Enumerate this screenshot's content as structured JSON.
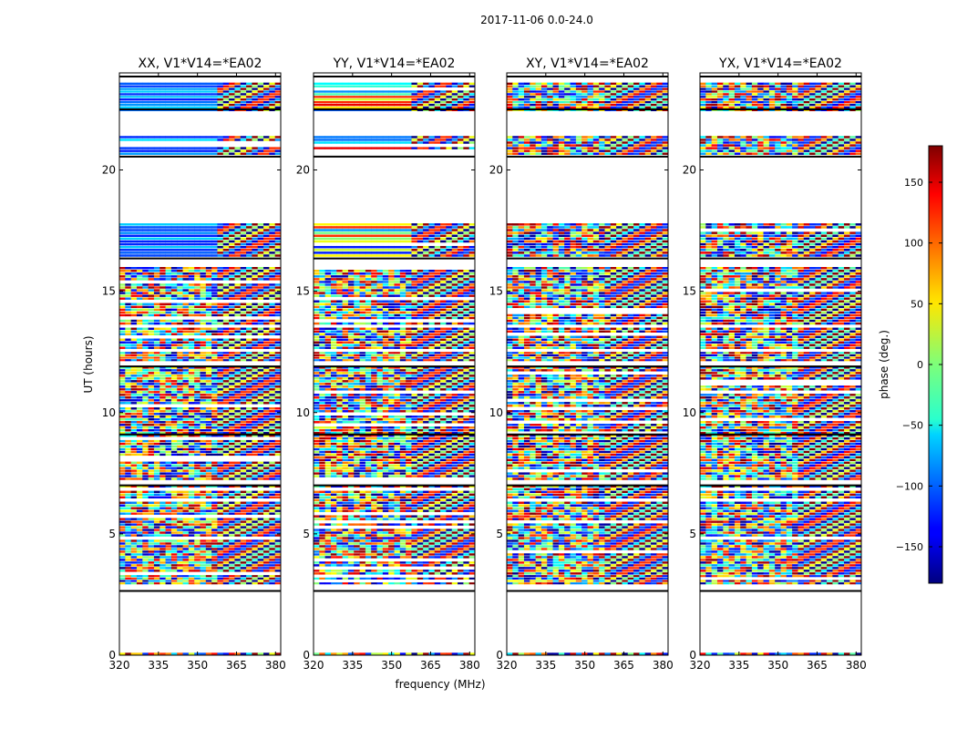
{
  "chart_data": {
    "type": "heatmap",
    "suptitle": "2017-11-06 0.0-24.0",
    "xlabel": "frequency (MHz)",
    "ylabel": "UT (hours)",
    "xlim": [
      320,
      382
    ],
    "ylim": [
      0,
      24
    ],
    "xticks": [
      320,
      335,
      350,
      365,
      380
    ],
    "yticks": [
      0,
      5,
      10,
      15,
      20
    ],
    "panels": [
      {
        "title": "XX, V1*V14=*EA02",
        "polarization": "XX"
      },
      {
        "title": "YY, V1*V14=*EA02",
        "polarization": "YY"
      },
      {
        "title": "XY, V1*V14=*EA02",
        "polarization": "XY"
      },
      {
        "title": "YX, V1*V14=*EA02",
        "polarization": "YX"
      }
    ],
    "colorbar": {
      "label": "phase (deg.)",
      "range": [
        -180,
        180
      ],
      "ticks": [
        -150,
        -100,
        -50,
        0,
        50,
        100,
        150
      ],
      "colormap": "jet"
    },
    "data_blocks_ut": [
      [
        0.0,
        0.1
      ],
      [
        2.9,
        3.3
      ],
      [
        3.3,
        7.0
      ],
      [
        7.2,
        9.2
      ],
      [
        9.2,
        11.9
      ],
      [
        12.1,
        12.5
      ],
      [
        12.6,
        13.5
      ],
      [
        13.6,
        16.0
      ],
      [
        16.4,
        17.8
      ],
      [
        20.6,
        21.4
      ],
      [
        22.4,
        23.6
      ]
    ],
    "flag_lines_ut": [
      2.65,
      7.0,
      9.1,
      11.9,
      16.35,
      20.55,
      22.5,
      23.85
    ]
  }
}
